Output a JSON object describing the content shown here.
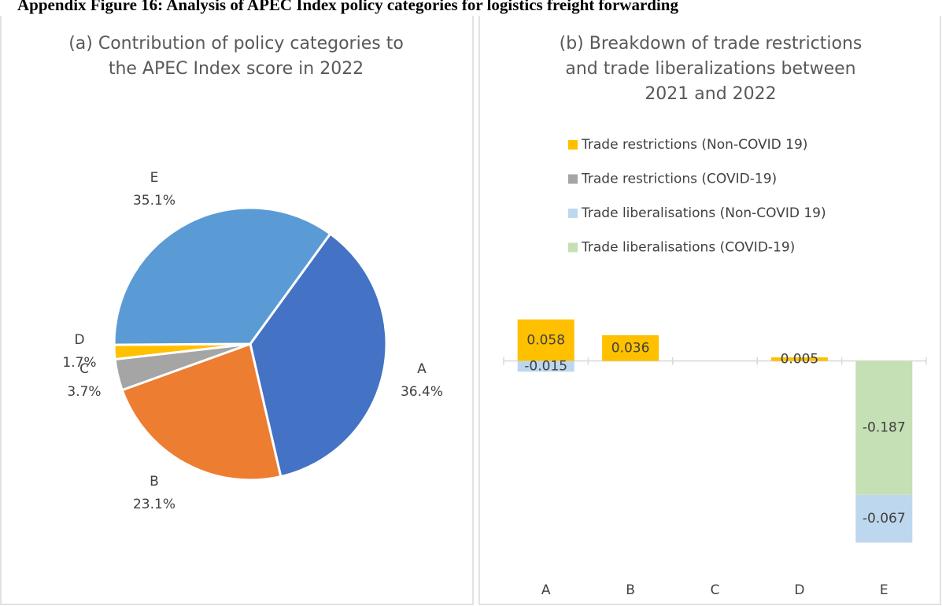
{
  "title": "Appendix Figure 16: Analysis of APEC Index policy categories for logistics freight forwarding",
  "chart_data": [
    {
      "type": "pie",
      "title": [
        "(a) Contribution of policy categories to",
        "the APEC Index score in 2022"
      ],
      "categories": [
        "A",
        "B",
        "C",
        "D",
        "E"
      ],
      "values": [
        36.4,
        23.1,
        3.7,
        1.7,
        35.1
      ],
      "value_labels": [
        "36.4%",
        "23.1%",
        "3.7%",
        "1.7%",
        "35.1%"
      ],
      "colors": [
        "#4472c4",
        "#ed7d31",
        "#a5a5a5",
        "#ffc000",
        "#5b9bd5"
      ]
    },
    {
      "type": "bar",
      "stacked": true,
      "title": [
        "(b) Breakdown of trade restrictions",
        "and trade liberalizations between",
        "2021 and 2022"
      ],
      "categories": [
        "A",
        "B",
        "C",
        "D",
        "E"
      ],
      "series": [
        {
          "name": "Trade restrictions (Non-COVID 19)",
          "color": "#ffc000",
          "values": [
            0.058,
            0.036,
            null,
            0.005,
            null
          ]
        },
        {
          "name": "Trade restrictions (COVID-19)",
          "color": "#a5a5a5",
          "values": [
            null,
            null,
            null,
            null,
            null
          ]
        },
        {
          "name": "Trade liberalisations (Non-COVID 19)",
          "color": "#bdd7ee",
          "values": [
            -0.015,
            null,
            null,
            null,
            -0.067
          ]
        },
        {
          "name": "Trade liberalisations (COVID-19)",
          "color": "#c5e0b4",
          "values": [
            null,
            null,
            null,
            null,
            -0.187
          ]
        }
      ],
      "ylim": [
        -0.26,
        0.07
      ],
      "legend": "top"
    }
  ]
}
